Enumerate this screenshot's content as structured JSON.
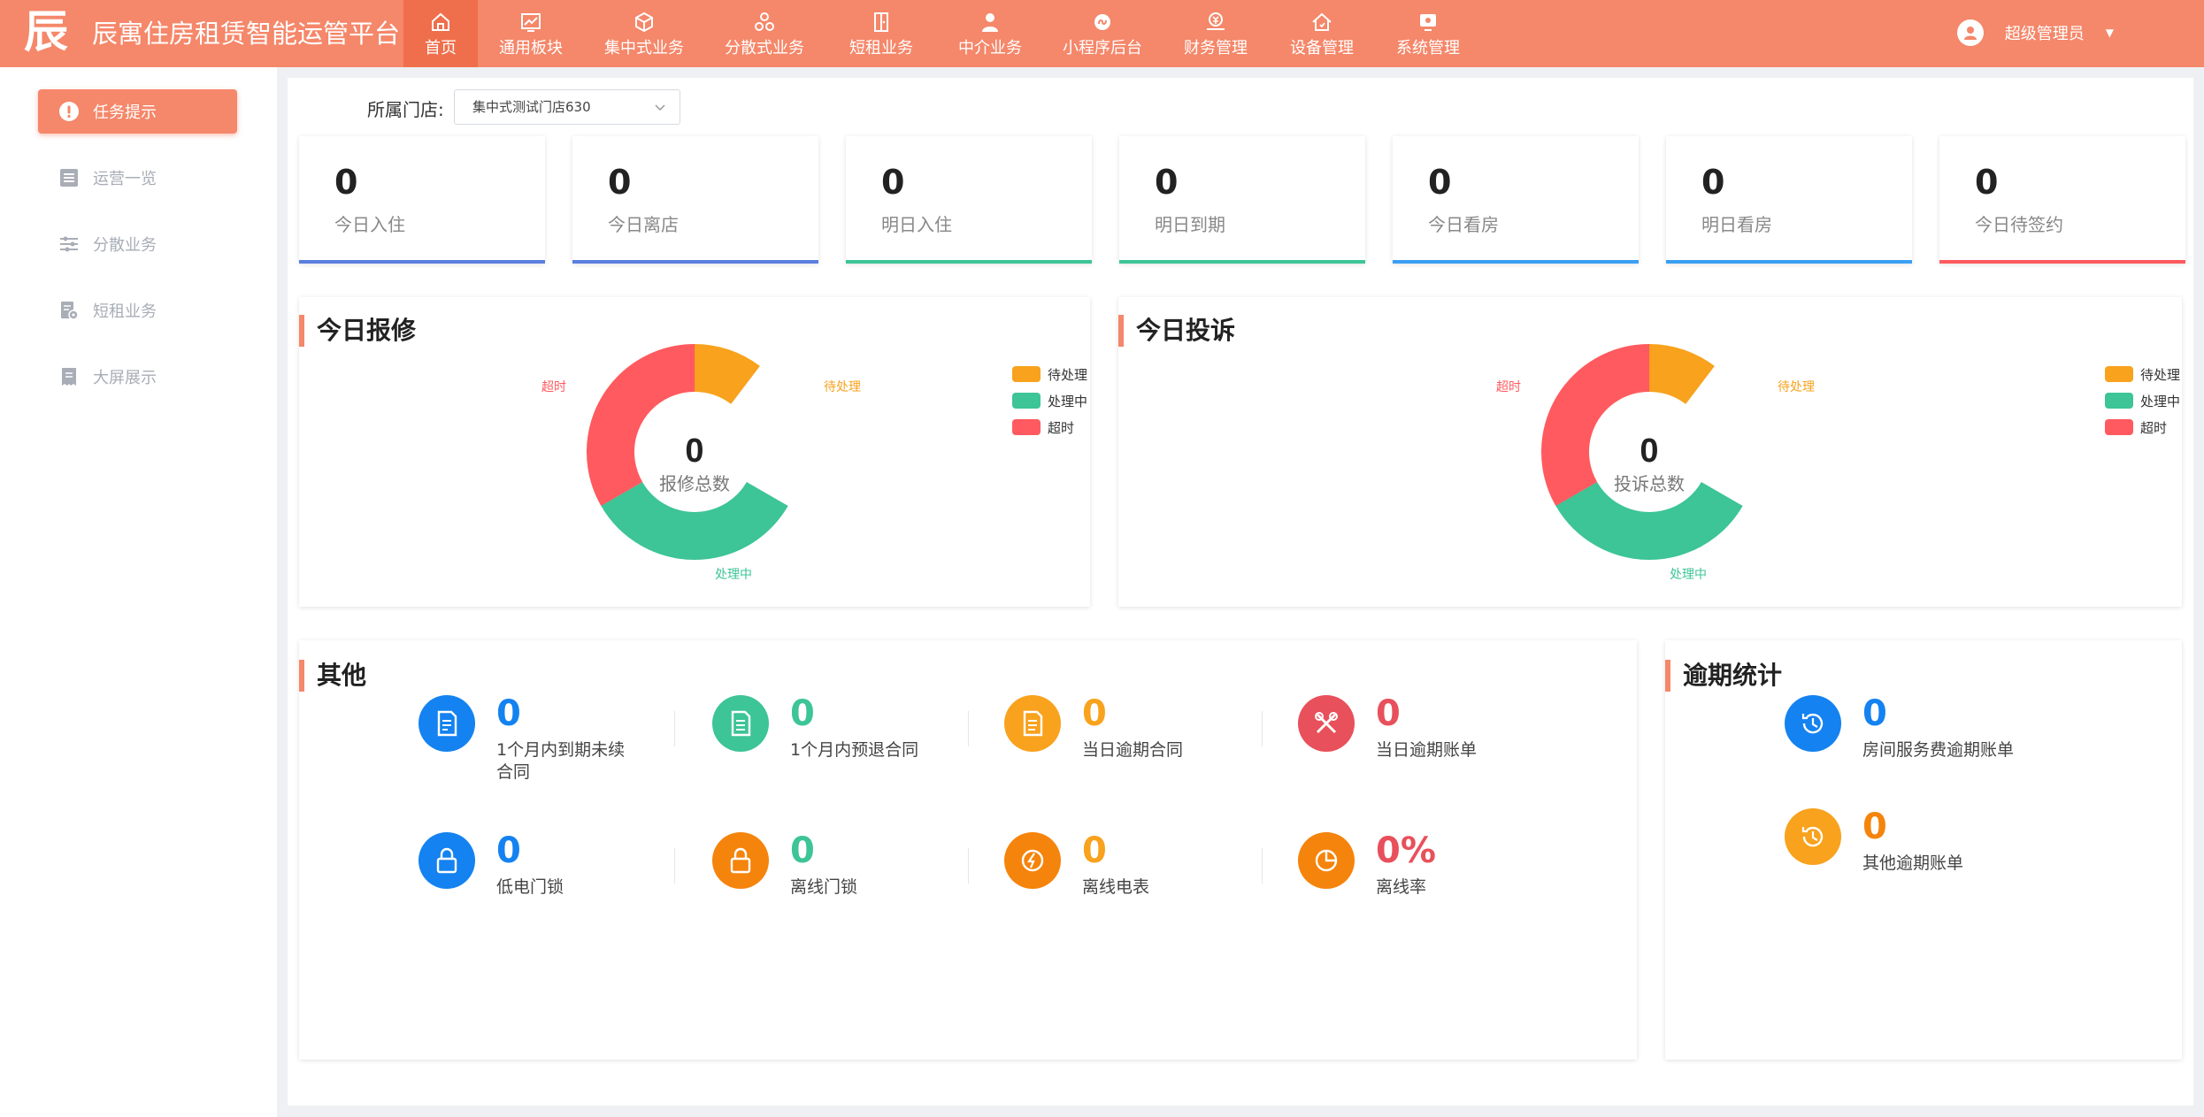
{
  "colors": {
    "brand": "#f5876a",
    "brand_active": "#ef6f4c",
    "blue": "#1482f0",
    "green": "#3dc497",
    "orange": "#f8a21d",
    "deep_orange": "#f5840c",
    "red": "#ff5a5f",
    "bar_blue": "#5b7fe0",
    "bar_green": "#3dc497",
    "bar_sky": "#3a9ff2",
    "bar_red": "#ff5a5f"
  },
  "header": {
    "logo_char": "辰",
    "title": "辰寓住房租赁智能运管平台",
    "nav": [
      {
        "label": "首页",
        "icon": "home-icon",
        "active": true
      },
      {
        "label": "通用板块",
        "icon": "chart-board-icon"
      },
      {
        "label": "集中式业务",
        "icon": "cube-icon"
      },
      {
        "label": "分散式业务",
        "icon": "cluster-icon"
      },
      {
        "label": "短租业务",
        "icon": "door-icon"
      },
      {
        "label": "中介业务",
        "icon": "agent-icon"
      },
      {
        "label": "小程序后台",
        "icon": "miniprogram-icon"
      },
      {
        "label": "财务管理",
        "icon": "finance-icon"
      },
      {
        "label": "设备管理",
        "icon": "device-house-icon"
      },
      {
        "label": "系统管理",
        "icon": "system-icon"
      }
    ],
    "user": {
      "name": "超级管理员",
      "icon": "user-avatar-icon"
    }
  },
  "sidebar": {
    "items": [
      {
        "label": "任务提示",
        "icon": "alert-icon",
        "active": true
      },
      {
        "label": "运营一览",
        "icon": "list-icon"
      },
      {
        "label": "分散业务",
        "icon": "sliders-icon"
      },
      {
        "label": "短租业务",
        "icon": "doc-settings-icon"
      },
      {
        "label": "大屏展示",
        "icon": "screen-icon"
      }
    ]
  },
  "filter": {
    "store_label": "所属门店:",
    "store_value": "集中式测试门店630"
  },
  "stats": [
    {
      "value": "0",
      "label": "今日入住",
      "color": "#5b7fe0"
    },
    {
      "value": "0",
      "label": "今日离店",
      "color": "#5b7fe0"
    },
    {
      "value": "0",
      "label": "明日入住",
      "color": "#3dc497"
    },
    {
      "value": "0",
      "label": "明日到期",
      "color": "#3dc497"
    },
    {
      "value": "0",
      "label": "今日看房",
      "color": "#3a9ff2"
    },
    {
      "value": "0",
      "label": "明日看房",
      "color": "#3a9ff2"
    },
    {
      "value": "0",
      "label": "今日待签约",
      "color": "#ff5a5f"
    }
  ],
  "repair": {
    "title": "今日报修",
    "total": "0",
    "total_label": "报修总数",
    "legend": [
      "待处理",
      "处理中",
      "超时"
    ],
    "slice_labels": {
      "pending": "待处理",
      "processing": "处理中",
      "timeout": "超时"
    }
  },
  "complaint": {
    "title": "今日投诉",
    "total": "0",
    "total_label": "投诉总数",
    "legend": [
      "待处理",
      "处理中",
      "超时"
    ],
    "slice_labels": {
      "pending": "待处理",
      "processing": "处理中",
      "timeout": "超时"
    }
  },
  "other": {
    "title": "其他",
    "kpis": [
      {
        "value": "0",
        "label": "1个月内到期未续合同",
        "icon": "contract-icon",
        "color": "#1482f0"
      },
      {
        "value": "0",
        "label": "1个月内预退合同",
        "icon": "refund-contract-icon",
        "color": "#3dc497"
      },
      {
        "value": "0",
        "label": "当日逾期合同",
        "icon": "overdue-contract-icon",
        "color": "#f8a21d"
      },
      {
        "value": "0",
        "label": "当日逾期账单",
        "icon": "tools-icon",
        "color": "#e8505b"
      },
      {
        "value": "0",
        "label": "低电门锁",
        "icon": "lock-icon",
        "color": "#1482f0"
      },
      {
        "value": "0",
        "label": "离线门锁",
        "icon": "lock-offline-icon",
        "color": "#f5840c"
      },
      {
        "value": "0",
        "label": "离线电表",
        "icon": "meter-icon",
        "color": "#f5840c"
      },
      {
        "value": "0%",
        "label": "离线率",
        "icon": "pie-icon",
        "color": "#e8505b"
      }
    ]
  },
  "overdue": {
    "title": "逾期统计",
    "kpis": [
      {
        "value": "0",
        "label": "房间服务费逾期账单",
        "icon": "history-icon",
        "color": "#1482f0"
      },
      {
        "value": "0",
        "label": "其他逾期账单",
        "icon": "history-icon",
        "color": "#f8a21d"
      }
    ]
  }
}
